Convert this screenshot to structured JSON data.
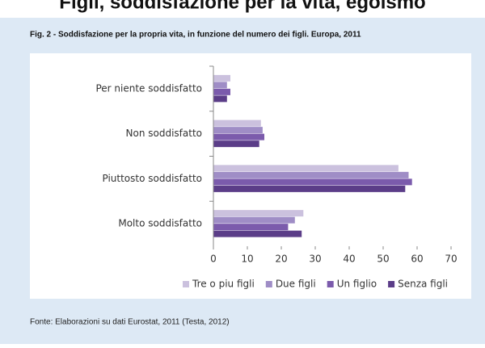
{
  "heading": "Figli, soddisfazione per la vita, egoismo",
  "chart_data": {
    "type": "hbar",
    "title": "Fig. 2 - Soddisfazione per la propria vita, in funzione del numero dei figli. Europa, 2011",
    "categories": [
      "Per niente soddisfatto",
      "Non soddisfatto",
      "Piuttosto soddisfatto",
      "Molto soddisfatto"
    ],
    "series": [
      {
        "name": "Tre o piu figli",
        "color": "#cbc1de",
        "values": [
          5,
          14,
          54.5,
          26.5
        ]
      },
      {
        "name": "Due figli",
        "color": "#9f8dc6",
        "values": [
          4,
          14.5,
          57.5,
          24
        ]
      },
      {
        "name": "Un figlio",
        "color": "#7b5bac",
        "values": [
          5,
          15,
          58.5,
          22
        ]
      },
      {
        "name": "Senza figli",
        "color": "#5b3d88",
        "values": [
          4,
          13.5,
          56.5,
          26
        ]
      }
    ],
    "xlim": [
      0,
      70
    ],
    "xticks": [
      0,
      10,
      20,
      30,
      40,
      50,
      60,
      70
    ],
    "legend": "bottom",
    "source": "Fonte: Elaborazioni su dati Eurostat, 2011 (Testa, 2012)"
  }
}
